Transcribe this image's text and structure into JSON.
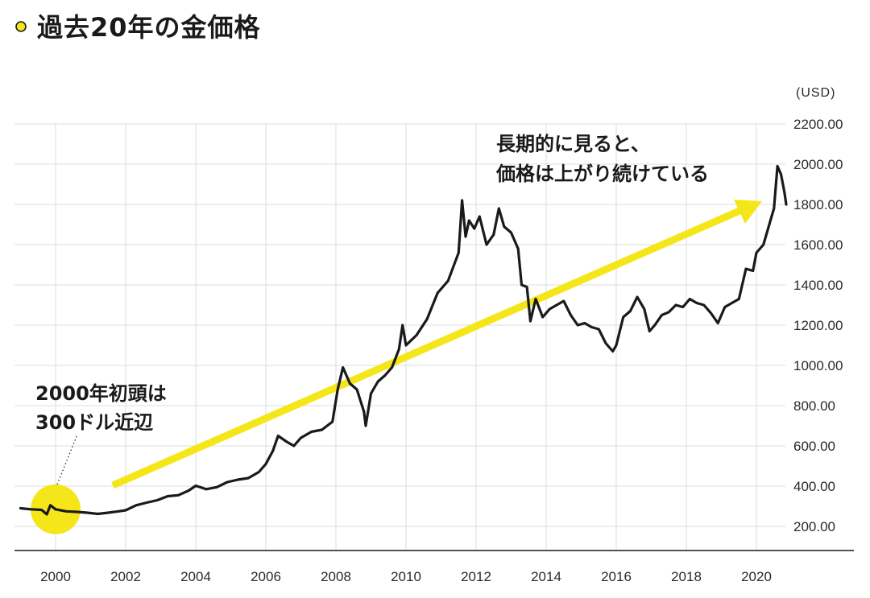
{
  "title": "過去20年の金価格",
  "colors": {
    "accent": "#f5e61a",
    "line": "#1a1a1a",
    "grid": "#dcdcdc"
  },
  "chart_data": {
    "type": "line",
    "title": "過去20年の金価格",
    "unit_label": "(USD)",
    "ylim": [
      100,
      2260
    ],
    "xlim": [
      1999.0,
      2022.0
    ],
    "y_ticks": [
      "200.00",
      "400.00",
      "600.00",
      "800.00",
      "1000.00",
      "1200.00",
      "1400.00",
      "1600.00",
      "1800.00",
      "2000.00",
      "2200.00"
    ],
    "x_ticks": [
      "2000",
      "2002",
      "2004",
      "2006",
      "2008",
      "2010",
      "2012",
      "2014",
      "2016",
      "2018",
      "2020"
    ],
    "grid": true,
    "series": [
      {
        "x": [
          1999.0,
          1999.3,
          1999.6,
          1999.75,
          1999.85,
          2000.0,
          2000.3,
          2000.6,
          2000.9,
          2001.2,
          2001.5,
          2001.8,
          2002.0,
          2002.3,
          2002.6,
          2002.9,
          2003.2,
          2003.5,
          2003.8,
          2004.0,
          2004.3,
          2004.6,
          2004.9,
          2005.2,
          2005.5,
          2005.8,
          2006.0,
          2006.2,
          2006.35,
          2006.6,
          2006.8,
          2007.0,
          2007.3,
          2007.6,
          2007.9,
          2008.05,
          2008.2,
          2008.4,
          2008.6,
          2008.8,
          2008.85,
          2009.0,
          2009.2,
          2009.4,
          2009.6,
          2009.8,
          2009.9,
          2010.0,
          2010.3,
          2010.6,
          2010.9,
          2011.2,
          2011.5,
          2011.6,
          2011.7,
          2011.8,
          2011.95,
          2012.1,
          2012.3,
          2012.5,
          2012.65,
          2012.8,
          2013.0,
          2013.2,
          2013.3,
          2013.45,
          2013.55,
          2013.7,
          2013.9,
          2014.1,
          2014.3,
          2014.5,
          2014.7,
          2014.9,
          2015.1,
          2015.3,
          2015.5,
          2015.7,
          2015.9,
          2016.0,
          2016.2,
          2016.4,
          2016.6,
          2016.8,
          2016.95,
          2017.1,
          2017.3,
          2017.5,
          2017.7,
          2017.9,
          2018.1,
          2018.3,
          2018.5,
          2018.7,
          2018.9,
          2019.1,
          2019.3,
          2019.5,
          2019.7,
          2019.9,
          2020.0,
          2020.2,
          2020.4,
          2020.5,
          2020.6,
          2020.7,
          2020.8,
          2020.85
        ],
        "y": [
          290,
          285,
          282,
          260,
          305,
          285,
          275,
          272,
          268,
          262,
          268,
          275,
          280,
          305,
          318,
          330,
          350,
          355,
          378,
          402,
          385,
          395,
          420,
          432,
          440,
          470,
          510,
          575,
          650,
          620,
          600,
          640,
          670,
          680,
          720,
          880,
          990,
          910,
          880,
          770,
          700,
          860,
          920,
          950,
          990,
          1080,
          1200,
          1100,
          1150,
          1230,
          1360,
          1420,
          1560,
          1820,
          1640,
          1720,
          1680,
          1740,
          1600,
          1650,
          1780,
          1690,
          1660,
          1580,
          1400,
          1390,
          1220,
          1330,
          1240,
          1280,
          1300,
          1320,
          1250,
          1200,
          1210,
          1190,
          1180,
          1110,
          1070,
          1100,
          1240,
          1270,
          1340,
          1280,
          1170,
          1200,
          1250,
          1265,
          1300,
          1290,
          1330,
          1310,
          1300,
          1260,
          1210,
          1290,
          1310,
          1330,
          1480,
          1470,
          1560,
          1600,
          1720,
          1780,
          1990,
          1950,
          1860,
          1800
        ]
      }
    ],
    "annotations": [
      {
        "lines": [
          "2000年初頭は",
          "300ドル近辺"
        ]
      },
      {
        "lines": [
          "長期的に見ると、",
          "価格は上がり続けている"
        ]
      }
    ]
  }
}
